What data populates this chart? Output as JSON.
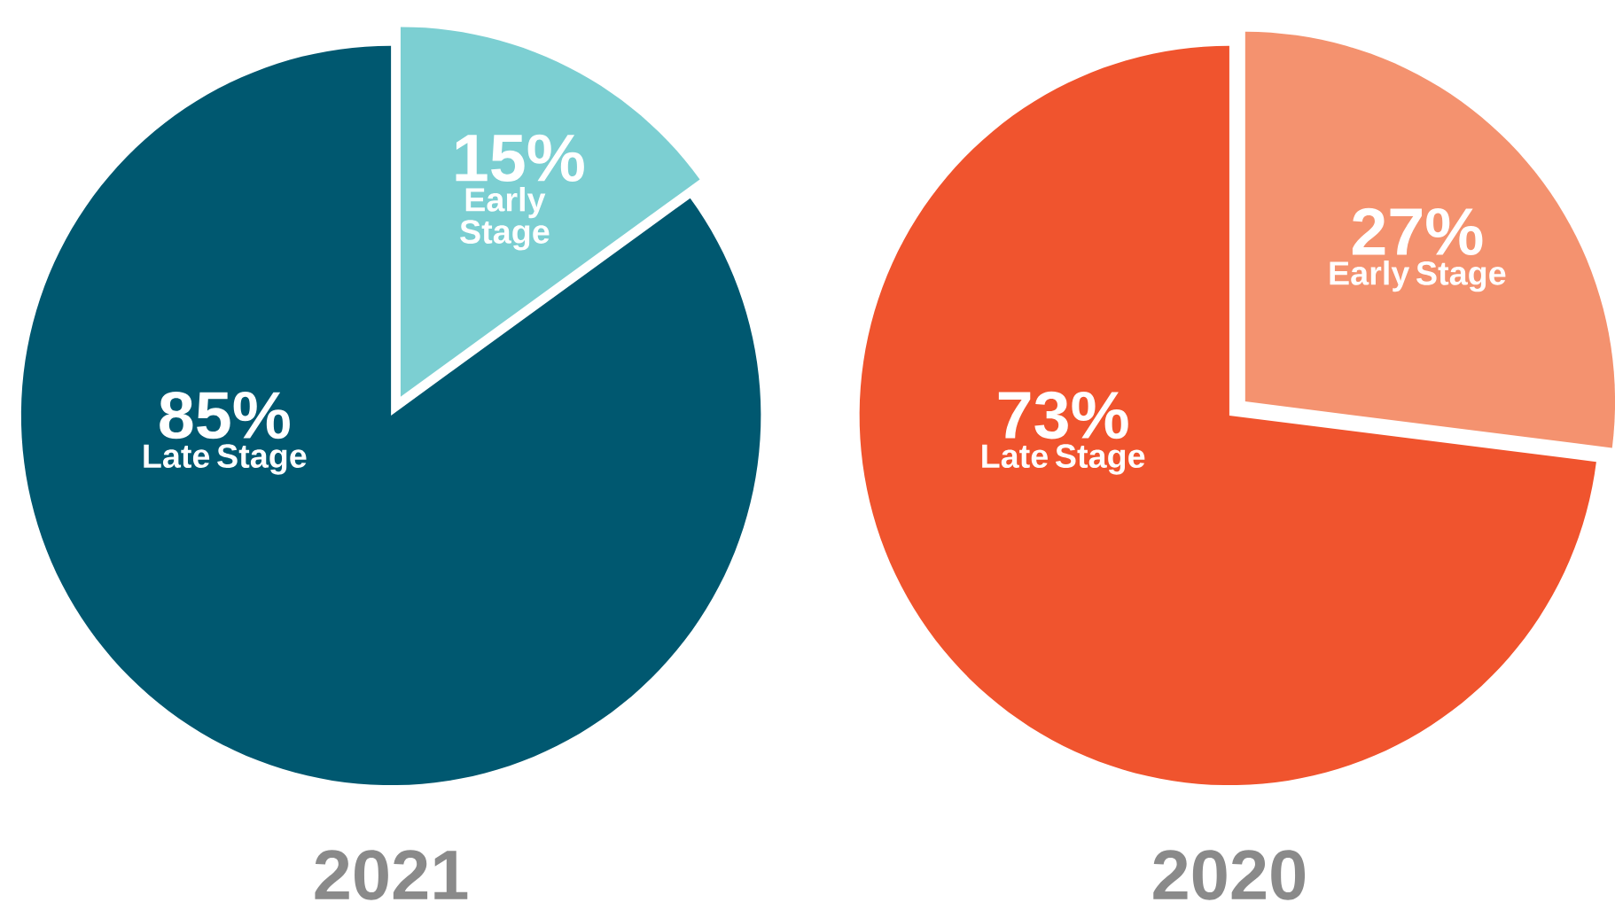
{
  "chart_data": [
    {
      "type": "pie",
      "title": "2021",
      "categories": [
        "Early Stage",
        "Late Stage"
      ],
      "values": [
        15,
        85
      ],
      "colors": [
        "#7ccfd2",
        "#005870"
      ],
      "value_labels": [
        "15%",
        "85%"
      ]
    },
    {
      "type": "pie",
      "title": "2020",
      "categories": [
        "Early Stage",
        "Late Stage"
      ],
      "values": [
        27,
        73
      ],
      "colors": [
        "#f4926f",
        "#f0542e"
      ],
      "value_labels": [
        "27%",
        "73%"
      ]
    }
  ]
}
